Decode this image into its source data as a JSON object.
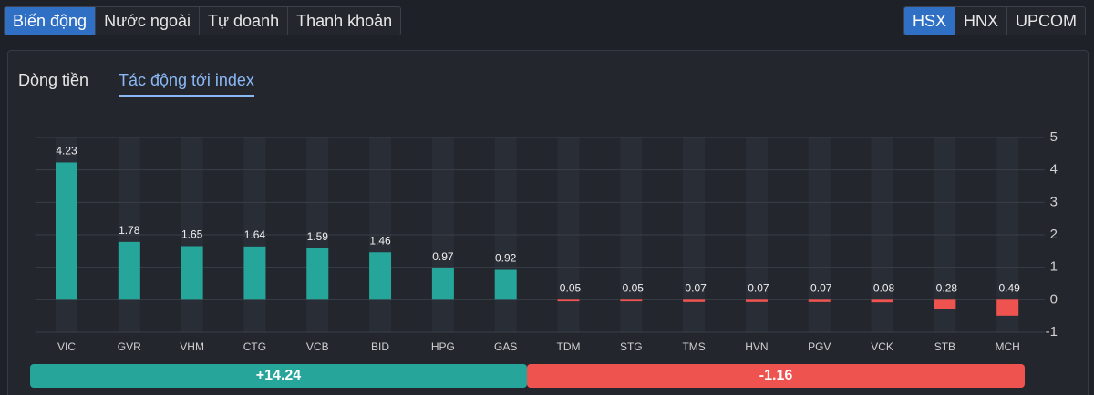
{
  "tabs": [
    "Biến động",
    "Nước ngoài",
    "Tự doanh",
    "Thanh khoản"
  ],
  "exchanges": [
    "HSX",
    "HNX",
    "UPCOM"
  ],
  "subtabs": [
    "Dòng tiền",
    "Tác động tới index"
  ],
  "chart_data": {
    "type": "bar",
    "categories": [
      "VIC",
      "GVR",
      "VHM",
      "CTG",
      "VCB",
      "BID",
      "HPG",
      "GAS",
      "TDM",
      "STG",
      "TMS",
      "HVN",
      "PGV",
      "VCK",
      "STB",
      "MCH"
    ],
    "values": [
      4.23,
      1.78,
      1.65,
      1.64,
      1.59,
      1.46,
      0.97,
      0.92,
      -0.05,
      -0.05,
      -0.07,
      -0.07,
      -0.07,
      -0.08,
      -0.28,
      -0.49
    ],
    "positive_color": "#26a69a",
    "negative_color": "#ef5350",
    "ylim": [
      -1,
      5
    ],
    "yticks": [
      -1,
      0,
      1,
      2,
      3,
      4,
      5
    ],
    "grid": true
  },
  "summary": {
    "positive": "+14.24",
    "negative": "-1.16"
  }
}
